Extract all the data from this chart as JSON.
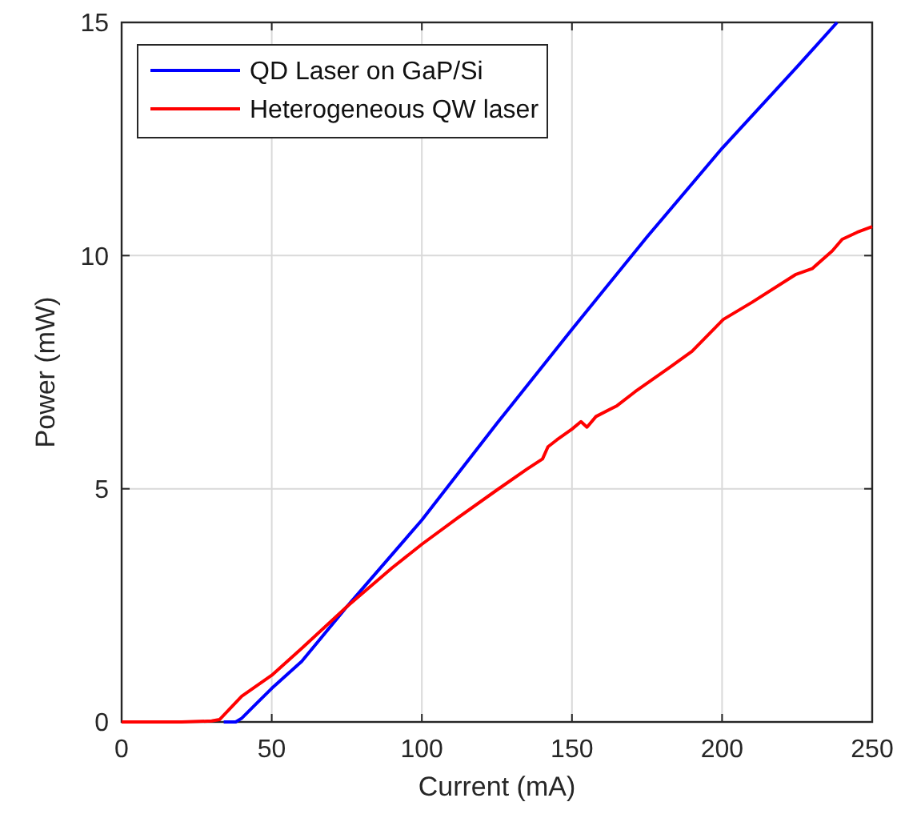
{
  "chart_data": {
    "type": "line",
    "xlabel": "Current (mA)",
    "ylabel": "Power (mW)",
    "xlim": [
      0,
      250
    ],
    "ylim": [
      0,
      15
    ],
    "xticks": [
      0,
      50,
      100,
      150,
      200,
      250
    ],
    "yticks": [
      0,
      5,
      10,
      15
    ],
    "grid": true,
    "legend": "top left",
    "line_style": "solid",
    "series": [
      {
        "name": "QD Laser on GaP/Si",
        "color": "#0000ff",
        "x": [
          34,
          38,
          40,
          45,
          50,
          60,
          75,
          100,
          125,
          150,
          175,
          200,
          225,
          238.3
        ],
        "values": [
          0,
          0,
          0.08,
          0.4,
          0.72,
          1.3,
          2.47,
          4.33,
          6.4,
          8.42,
          10.4,
          12.3,
          14.05,
          15
        ]
      },
      {
        "name": "Heterogeneous QW laser",
        "color": "#ff0000",
        "x": [
          0,
          10,
          20,
          30,
          32.6,
          40,
          50,
          60,
          75,
          90,
          100,
          112,
          124.7,
          135,
          140.2,
          142,
          145,
          150,
          153,
          155,
          158,
          165,
          171,
          182.5,
          190,
          200.4,
          210,
          224.4,
          230,
          236.7,
          240,
          245,
          250
        ],
        "values": [
          0,
          0,
          0,
          0.02,
          0.05,
          0.55,
          1.0,
          1.58,
          2.47,
          3.3,
          3.81,
          4.38,
          4.96,
          5.42,
          5.64,
          5.9,
          6.05,
          6.28,
          6.44,
          6.32,
          6.55,
          6.78,
          7.08,
          7.6,
          7.95,
          8.63,
          9.0,
          9.59,
          9.72,
          10.1,
          10.35,
          10.5,
          10.62
        ]
      }
    ]
  }
}
